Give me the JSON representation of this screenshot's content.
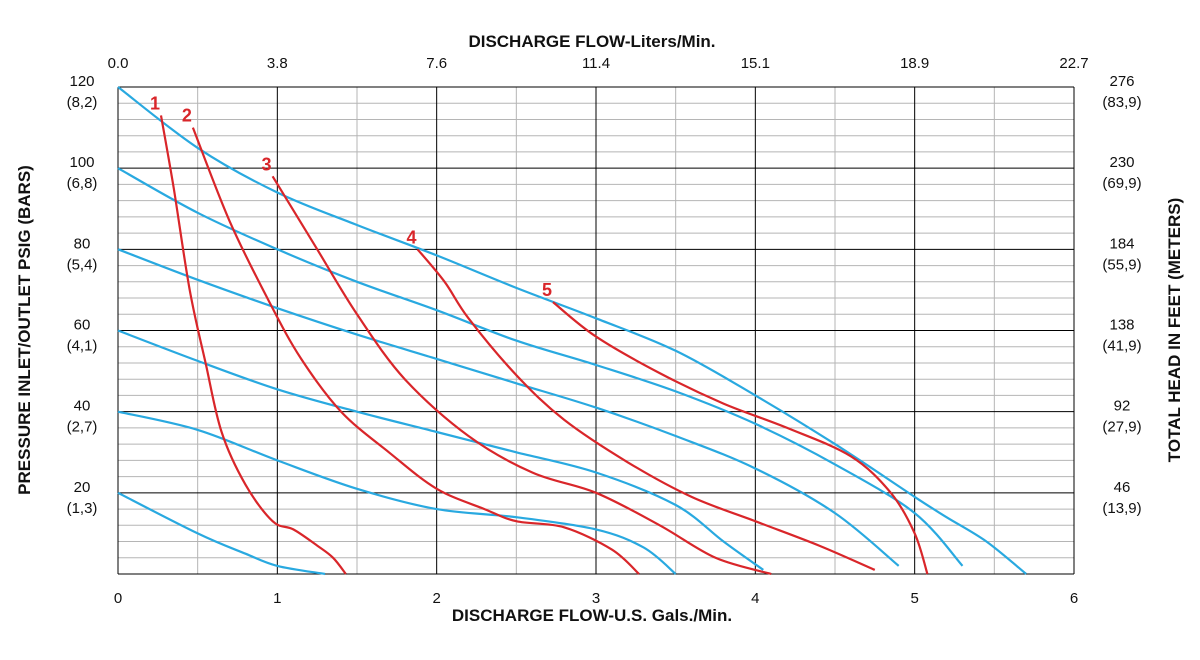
{
  "chart_data": {
    "type": "line",
    "colors": {
      "air_pressure_lines": "#29a9e0",
      "flow_curves": "#d9262a",
      "major_grid": "#000000",
      "minor_grid": "#b5b5b5"
    },
    "top_axis": {
      "label": "DISCHARGE FLOW-Liters/Min.",
      "ticks": [
        {
          "gpm": 0,
          "label": "0.0"
        },
        {
          "gpm": 1,
          "label": "3.8"
        },
        {
          "gpm": 2,
          "label": "7.6"
        },
        {
          "gpm": 3,
          "label": "11.4"
        },
        {
          "gpm": 4,
          "label": "15.1"
        },
        {
          "gpm": 5,
          "label": "18.9"
        },
        {
          "gpm": 6,
          "label": "22.7"
        }
      ]
    },
    "bottom_axis": {
      "label": "DISCHARGE FLOW-U.S. Gals./Min.",
      "xlim": [
        0,
        6
      ],
      "ticks": [
        {
          "gpm": 0,
          "label": "0"
        },
        {
          "gpm": 1,
          "label": "1"
        },
        {
          "gpm": 2,
          "label": "2"
        },
        {
          "gpm": 3,
          "label": "3"
        },
        {
          "gpm": 4,
          "label": "4"
        },
        {
          "gpm": 5,
          "label": "5"
        },
        {
          "gpm": 6,
          "label": "6"
        }
      ]
    },
    "left_axis": {
      "label": "PRESSURE INLET/OUTLET PSIG (BARS)",
      "ylim": [
        0,
        120
      ],
      "ticks": [
        {
          "psi": 120,
          "label1": "120",
          "label2": "(8,2)"
        },
        {
          "psi": 100,
          "label1": "100",
          "label2": "(6,8)"
        },
        {
          "psi": 80,
          "label1": "80",
          "label2": "(5,4)"
        },
        {
          "psi": 60,
          "label1": "60",
          "label2": "(4,1)"
        },
        {
          "psi": 40,
          "label1": "40",
          "label2": "(2,7)"
        },
        {
          "psi": 20,
          "label1": "20",
          "label2": "(1,3)"
        }
      ]
    },
    "right_axis": {
      "label": "TOTAL HEAD IN FEET (METERS)",
      "ticks": [
        {
          "psi": 120,
          "label1": "276",
          "label2": "(83,9)"
        },
        {
          "psi": 100,
          "label1": "230",
          "label2": "(69,9)"
        },
        {
          "psi": 80,
          "label1": "184",
          "label2": "(55,9)"
        },
        {
          "psi": 60,
          "label1": "138",
          "label2": "(41,9)"
        },
        {
          "psi": 40,
          "label1": "92",
          "label2": "(27,9)"
        },
        {
          "psi": 20,
          "label1": "46",
          "label2": "(13,9)"
        }
      ]
    },
    "grid": {
      "major_x_step": 1,
      "minor_x_step": 0.5,
      "major_y_step": 20,
      "minor_y_step": 4
    },
    "air_pressure_lines": [
      {
        "points": [
          [
            0,
            120
          ],
          [
            0.5,
            105
          ],
          [
            1,
            94
          ],
          [
            1.5,
            86
          ],
          [
            2,
            78.5
          ],
          [
            2.5,
            70.5
          ],
          [
            3,
            63
          ],
          [
            3.5,
            55
          ],
          [
            4,
            44
          ],
          [
            4.5,
            32
          ],
          [
            5,
            19
          ],
          [
            5.2,
            14
          ],
          [
            5.45,
            8
          ],
          [
            5.7,
            0
          ]
        ]
      },
      {
        "points": [
          [
            0,
            100
          ],
          [
            0.5,
            89
          ],
          [
            1,
            80
          ],
          [
            1.5,
            72
          ],
          [
            2,
            65
          ],
          [
            2.5,
            57.5
          ],
          [
            3,
            51.5
          ],
          [
            3.5,
            45
          ],
          [
            4,
            37
          ],
          [
            4.5,
            27
          ],
          [
            5,
            15
          ],
          [
            5.3,
            2
          ]
        ]
      },
      {
        "points": [
          [
            0,
            80
          ],
          [
            0.5,
            72.5
          ],
          [
            1,
            65.5
          ],
          [
            1.5,
            59
          ],
          [
            2,
            53
          ],
          [
            2.5,
            47
          ],
          [
            3,
            41
          ],
          [
            3.5,
            34
          ],
          [
            4,
            26
          ],
          [
            4.5,
            15
          ],
          [
            4.9,
            2
          ]
        ]
      },
      {
        "points": [
          [
            0,
            60
          ],
          [
            0.5,
            52.5
          ],
          [
            1,
            45.5
          ],
          [
            1.5,
            40
          ],
          [
            2,
            35
          ],
          [
            2.5,
            30
          ],
          [
            3,
            25
          ],
          [
            3.5,
            17
          ],
          [
            3.8,
            8
          ],
          [
            4.05,
            1
          ]
        ]
      },
      {
        "points": [
          [
            0,
            40
          ],
          [
            0.5,
            35.5
          ],
          [
            1,
            28
          ],
          [
            1.5,
            21
          ],
          [
            2,
            16
          ],
          [
            2.5,
            14
          ],
          [
            3,
            11
          ],
          [
            3.3,
            6.5
          ],
          [
            3.5,
            0
          ]
        ]
      },
      {
        "points": [
          [
            0,
            20
          ],
          [
            0.5,
            10
          ],
          [
            0.8,
            5
          ],
          [
            1,
            2
          ],
          [
            1.3,
            0
          ]
        ]
      }
    ],
    "flow_curves": [
      {
        "label": "1",
        "points": [
          [
            0.27,
            113
          ],
          [
            0.35,
            95
          ],
          [
            0.45,
            70
          ],
          [
            0.55,
            52
          ],
          [
            0.65,
            35
          ],
          [
            0.8,
            22
          ],
          [
            0.97,
            13
          ],
          [
            1.1,
            11
          ],
          [
            1.25,
            7
          ],
          [
            1.35,
            4
          ],
          [
            1.43,
            0
          ]
        ]
      },
      {
        "label": "2",
        "points": [
          [
            0.47,
            110
          ],
          [
            0.7,
            87
          ],
          [
            0.95,
            67
          ],
          [
            1.15,
            53
          ],
          [
            1.4,
            40
          ],
          [
            1.7,
            30
          ],
          [
            2,
            21
          ],
          [
            2.3,
            16
          ],
          [
            2.5,
            13
          ],
          [
            2.8,
            11.5
          ],
          [
            3.1,
            6
          ],
          [
            3.27,
            0
          ]
        ]
      },
      {
        "label": "3",
        "points": [
          [
            0.97,
            98
          ],
          [
            1.25,
            80
          ],
          [
            1.5,
            64
          ],
          [
            1.8,
            48
          ],
          [
            2.2,
            34
          ],
          [
            2.6,
            25
          ],
          [
            3,
            20
          ],
          [
            3.4,
            12
          ],
          [
            3.75,
            4
          ],
          [
            4.1,
            0
          ]
        ]
      },
      {
        "label": "4",
        "points": [
          [
            1.88,
            80
          ],
          [
            2.05,
            72
          ],
          [
            2.2,
            63
          ],
          [
            2.5,
            49
          ],
          [
            2.8,
            38
          ],
          [
            3.2,
            27.5
          ],
          [
            3.6,
            19
          ],
          [
            4,
            13
          ],
          [
            4.4,
            7
          ],
          [
            4.75,
            1
          ]
        ]
      },
      {
        "label": "5",
        "points": [
          [
            2.73,
            67
          ],
          [
            3,
            58.5
          ],
          [
            3.4,
            49.5
          ],
          [
            3.8,
            42
          ],
          [
            4.2,
            36
          ],
          [
            4.6,
            29
          ],
          [
            4.85,
            20
          ],
          [
            5,
            10
          ],
          [
            5.08,
            0
          ]
        ]
      }
    ]
  }
}
